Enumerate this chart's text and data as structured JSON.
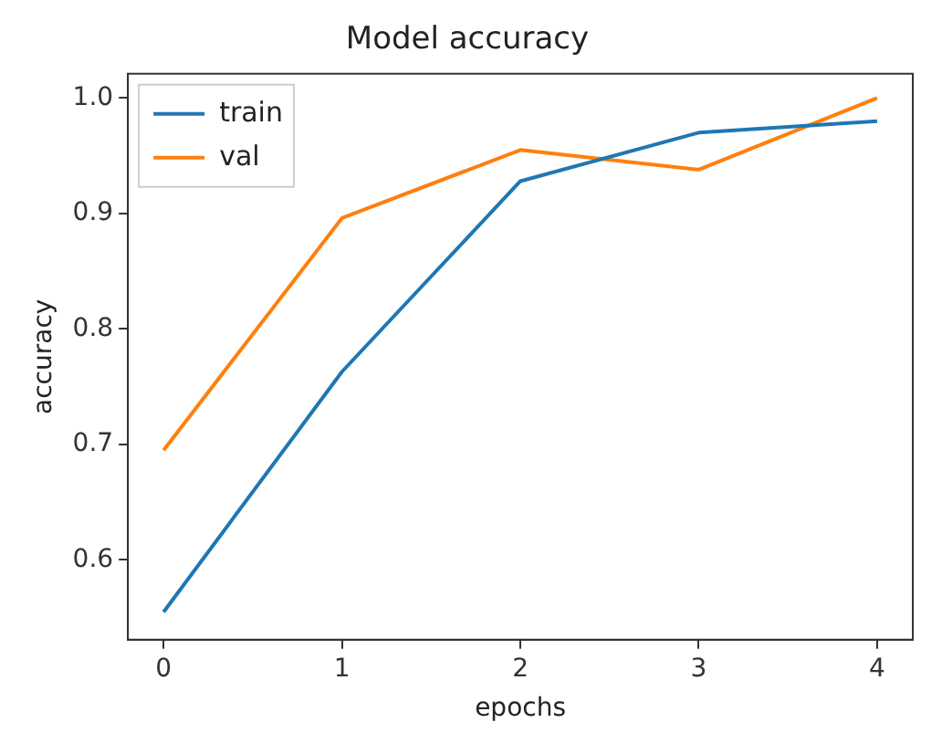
{
  "chart_data": {
    "type": "line",
    "title": "Model accuracy",
    "xlabel": "epochs",
    "ylabel": "accuracy",
    "x": [
      0,
      1,
      2,
      3,
      4
    ],
    "series": [
      {
        "name": "train",
        "color": "#1f77b4",
        "values": [
          0.555,
          0.763,
          0.928,
          0.97,
          0.98
        ]
      },
      {
        "name": "val",
        "color": "#ff7f0e",
        "values": [
          0.695,
          0.896,
          0.955,
          0.938,
          1.0
        ]
      }
    ],
    "xlim": [
      -0.2,
      4.2
    ],
    "xticks": [
      0,
      1,
      2,
      3,
      4
    ],
    "ylim": [
      0.531,
      1.021
    ],
    "yticks": [
      0.6,
      0.7,
      0.8,
      0.9,
      {
        "value": 1,
        "label": "1.0"
      }
    ],
    "grid": false,
    "legend": "top left",
    "marker": "none",
    "line_style": "solid"
  }
}
